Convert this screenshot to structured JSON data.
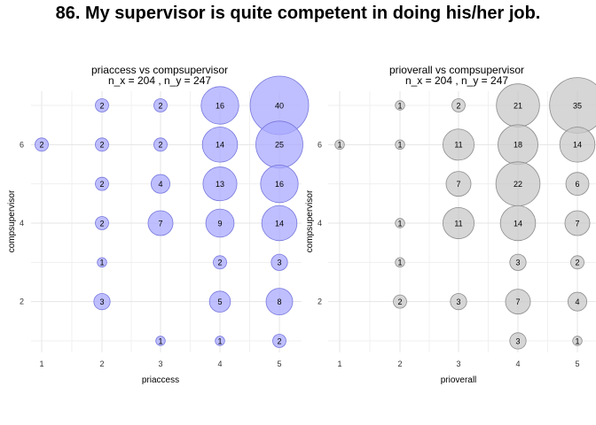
{
  "page_title": "86. My supervisor is quite competent in doing his/her job.",
  "chart_data": [
    {
      "type": "scatter",
      "subtype": "bubble",
      "title": "priaccess vs compsupervisor",
      "subtitle": "n_x = 204 , n_y = 247",
      "xlabel": "priaccess",
      "ylabel": "compsupervisor",
      "xticks": [
        "1",
        "2",
        "3",
        "4",
        "5"
      ],
      "yticks": [
        "2",
        "4",
        "6"
      ],
      "xlim": [
        0.5,
        5.5
      ],
      "ylim": [
        0.5,
        7.5
      ],
      "grid": true,
      "color": "#aaaaff",
      "stroke": "#7777dd",
      "points": [
        {
          "x": 2,
          "y": 7,
          "n": 2
        },
        {
          "x": 3,
          "y": 7,
          "n": 2
        },
        {
          "x": 4,
          "y": 7,
          "n": 16
        },
        {
          "x": 5,
          "y": 7,
          "n": 40
        },
        {
          "x": 1,
          "y": 6,
          "n": 2
        },
        {
          "x": 2,
          "y": 6,
          "n": 2
        },
        {
          "x": 3,
          "y": 6,
          "n": 2
        },
        {
          "x": 4,
          "y": 6,
          "n": 14
        },
        {
          "x": 5,
          "y": 6,
          "n": 25
        },
        {
          "x": 2,
          "y": 5,
          "n": 2
        },
        {
          "x": 3,
          "y": 5,
          "n": 4
        },
        {
          "x": 4,
          "y": 5,
          "n": 13
        },
        {
          "x": 5,
          "y": 5,
          "n": 16
        },
        {
          "x": 2,
          "y": 4,
          "n": 2
        },
        {
          "x": 3,
          "y": 4,
          "n": 7
        },
        {
          "x": 4,
          "y": 4,
          "n": 9
        },
        {
          "x": 5,
          "y": 4,
          "n": 14
        },
        {
          "x": 2,
          "y": 3,
          "n": 1
        },
        {
          "x": 4,
          "y": 3,
          "n": 2
        },
        {
          "x": 5,
          "y": 3,
          "n": 3
        },
        {
          "x": 2,
          "y": 2,
          "n": 3
        },
        {
          "x": 4,
          "y": 2,
          "n": 5
        },
        {
          "x": 5,
          "y": 2,
          "n": 8
        },
        {
          "x": 3,
          "y": 1,
          "n": 1
        },
        {
          "x": 4,
          "y": 1,
          "n": 1
        },
        {
          "x": 5,
          "y": 1,
          "n": 2
        }
      ]
    },
    {
      "type": "scatter",
      "subtype": "bubble",
      "title": "prioverall vs compsupervisor",
      "subtitle": "n_x = 204 , n_y = 247",
      "xlabel": "prioverall",
      "ylabel": "compsupervisor",
      "xticks": [
        "1",
        "2",
        "3",
        "4",
        "5"
      ],
      "yticks": [
        "2",
        "4",
        "6"
      ],
      "xlim": [
        0.5,
        5.5
      ],
      "ylim": [
        0.5,
        7.5
      ],
      "grid": true,
      "color": "#c8c8c8",
      "stroke": "#8c8c8c",
      "points": [
        {
          "x": 2,
          "y": 7,
          "n": 1
        },
        {
          "x": 3,
          "y": 7,
          "n": 2
        },
        {
          "x": 4,
          "y": 7,
          "n": 21
        },
        {
          "x": 5,
          "y": 7,
          "n": 35
        },
        {
          "x": 1,
          "y": 6,
          "n": 1
        },
        {
          "x": 2,
          "y": 6,
          "n": 1
        },
        {
          "x": 3,
          "y": 6,
          "n": 11
        },
        {
          "x": 4,
          "y": 6,
          "n": 18
        },
        {
          "x": 5,
          "y": 6,
          "n": 14
        },
        {
          "x": 3,
          "y": 5,
          "n": 7
        },
        {
          "x": 4,
          "y": 5,
          "n": 22
        },
        {
          "x": 5,
          "y": 5,
          "n": 6
        },
        {
          "x": 2,
          "y": 4,
          "n": 1
        },
        {
          "x": 3,
          "y": 4,
          "n": 11
        },
        {
          "x": 4,
          "y": 4,
          "n": 14
        },
        {
          "x": 5,
          "y": 4,
          "n": 7
        },
        {
          "x": 2,
          "y": 3,
          "n": 1
        },
        {
          "x": 4,
          "y": 3,
          "n": 3
        },
        {
          "x": 5,
          "y": 3,
          "n": 2
        },
        {
          "x": 2,
          "y": 2,
          "n": 2
        },
        {
          "x": 3,
          "y": 2,
          "n": 3
        },
        {
          "x": 4,
          "y": 2,
          "n": 7
        },
        {
          "x": 5,
          "y": 2,
          "n": 4
        },
        {
          "x": 4,
          "y": 1,
          "n": 3
        },
        {
          "x": 5,
          "y": 1,
          "n": 1
        }
      ]
    }
  ]
}
